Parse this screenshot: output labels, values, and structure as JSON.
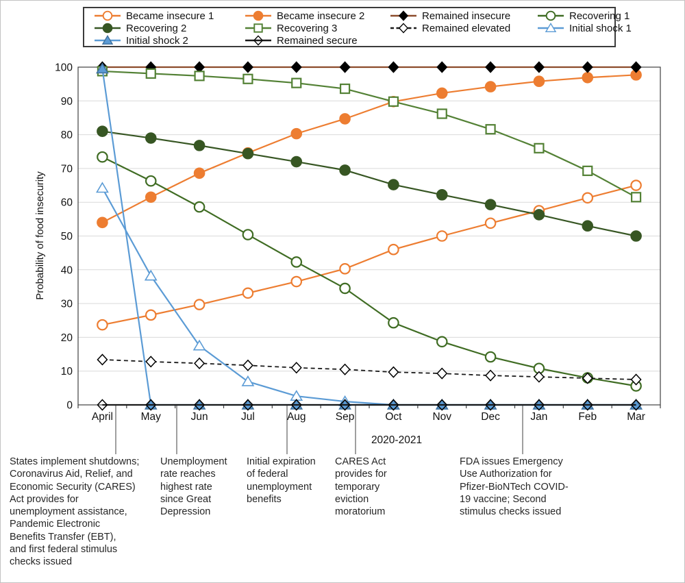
{
  "figure": {
    "background": "#ffffff",
    "border_color": "#c2c2c2"
  },
  "chart_data": {
    "type": "line",
    "title": "",
    "ylabel": "Probability of food insecurity",
    "xlabel": "2020-2021",
    "categories": [
      "April",
      "May",
      "Jun",
      "Jul",
      "Aug",
      "Sep",
      "Oct",
      "Nov",
      "Dec",
      "Jan",
      "Feb",
      "Mar"
    ],
    "ylim": [
      0,
      100
    ],
    "ytick_interval": 10,
    "y_ticks": [
      0,
      10,
      20,
      30,
      40,
      50,
      60,
      70,
      80,
      90,
      100
    ],
    "grid": true,
    "gridline_color": "#d9d9d9",
    "legend_position": "top",
    "series": [
      {
        "name": "Became insecure 1",
        "line_color": "#ED7D31",
        "line_style": "solid",
        "marker": {
          "shape": "circle",
          "fill": "#ffffff",
          "stroke": "#ED7D31"
        },
        "values": [
          23.7,
          26.6,
          29.7,
          33.1,
          36.5,
          40.3,
          46.0,
          50.0,
          53.8,
          57.5,
          61.3,
          65.0
        ]
      },
      {
        "name": "Became insecure 2",
        "line_color": "#ED7D31",
        "line_style": "solid",
        "marker": {
          "shape": "circle",
          "fill": "#ED7D31",
          "stroke": "#ED7D31"
        },
        "values": [
          54.0,
          61.5,
          68.6,
          74.6,
          80.3,
          84.7,
          89.8,
          92.3,
          94.2,
          95.8,
          96.9,
          97.7
        ]
      },
      {
        "name": "Remained insecure",
        "line_color": "#8C4B2B",
        "line_style": "solid",
        "marker": {
          "shape": "diamond",
          "fill": "#000000",
          "stroke": "#000000"
        },
        "values": [
          100,
          100,
          100,
          100,
          100,
          100,
          100,
          100,
          100,
          100,
          100,
          100
        ]
      },
      {
        "name": "Recovering 1",
        "line_color": "#3F6C23",
        "line_style": "solid",
        "marker": {
          "shape": "circle",
          "fill": "#ffffff",
          "stroke": "#3F6C23"
        },
        "values": [
          73.4,
          66.3,
          58.6,
          50.4,
          42.3,
          34.5,
          24.3,
          18.7,
          14.2,
          10.8,
          8.0,
          5.6
        ]
      },
      {
        "name": "Recovering 2",
        "line_color": "#375623",
        "line_style": "solid",
        "marker": {
          "shape": "circle",
          "fill": "#375623",
          "stroke": "#375623"
        },
        "values": [
          81.0,
          79.0,
          76.8,
          74.4,
          72.0,
          69.5,
          65.2,
          62.2,
          59.3,
          56.3,
          53.0,
          50.0
        ]
      },
      {
        "name": "Recovering 3",
        "line_color": "#538135",
        "line_style": "solid",
        "marker": {
          "shape": "square",
          "fill": "#ffffff",
          "stroke": "#538135"
        },
        "values": [
          98.8,
          98.1,
          97.4,
          96.5,
          95.3,
          93.6,
          89.8,
          86.2,
          81.6,
          76.0,
          69.3,
          61.5
        ]
      },
      {
        "name": "Remained elevated",
        "line_color": "#1a1a1a",
        "line_style": "dashed",
        "marker": {
          "shape": "diamond",
          "fill": "#ffffff",
          "stroke": "#000000"
        },
        "values": [
          13.4,
          12.8,
          12.3,
          11.7,
          11.0,
          10.5,
          9.7,
          9.3,
          8.7,
          8.3,
          7.9,
          7.5
        ]
      },
      {
        "name": "Initial shock 1",
        "line_color": "#5B9BD5",
        "line_style": "solid",
        "marker": {
          "shape": "triangle",
          "fill": "#ffffff",
          "stroke": "#5B9BD5"
        },
        "values": [
          64.2,
          38.2,
          17.5,
          6.9,
          2.6,
          1.0,
          0,
          0,
          0,
          0,
          0,
          0
        ]
      },
      {
        "name": "Initial shock 2",
        "line_color": "#5B9BD5",
        "line_style": "solid",
        "marker": {
          "shape": "triangle",
          "fill": "#5B9BD5",
          "stroke": "#41719C"
        },
        "values": [
          99.5,
          0,
          0,
          0,
          0,
          0,
          0,
          0,
          0,
          0,
          0,
          0
        ]
      },
      {
        "name": "Remained secure",
        "line_color": "#1a1a1a",
        "line_style": "solid",
        "marker": {
          "shape": "diamond",
          "fill": "none",
          "stroke": "#000000"
        },
        "values": [
          0,
          0,
          0,
          0,
          0,
          0,
          0,
          0,
          0,
          0,
          0,
          0
        ]
      }
    ]
  },
  "annotations": [
    {
      "text": "States implement shutdowns;\nCoronavirus Aid, Relief, and\nEconomic Security (CARES)\nAct provides for\nunemployment assistance,\nPandemic Electronic\nBenefits Transfer (EBT),\nand first federal stimulus\nchecks issued"
    },
    {
      "text": "Unemployment\nrate reaches\nhighest rate\nsince Great\nDepression"
    },
    {
      "text": "Initial expiration\nof federal\nunemployment\nbenefits"
    },
    {
      "text": "CARES Act\nprovides for\ntemporary\neviction\nmoratorium"
    },
    {
      "text": "FDA issues Emergency\nUse Authorization for\nPfizer-BioNTech COVID-\n19 vaccine; Second\nstimulus checks issued"
    }
  ]
}
